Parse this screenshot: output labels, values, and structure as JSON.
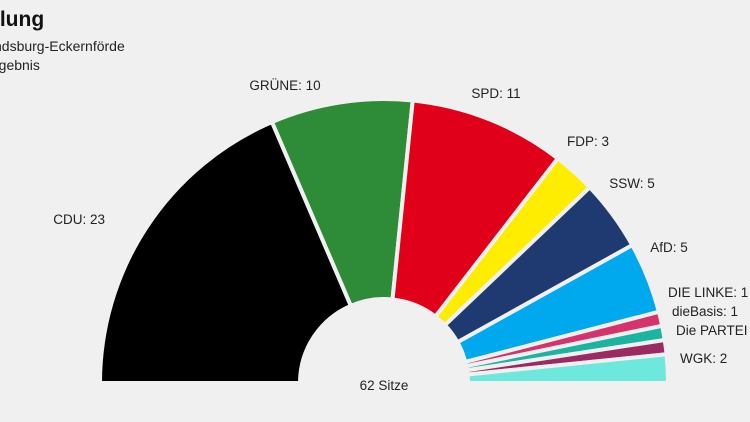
{
  "chart_data": {
    "type": "parliament-semicircle",
    "title": "ilung",
    "subtitle_lines": [
      "ndsburg-Eckernförde",
      "rgebnis"
    ],
    "total_label": "62 Sitze",
    "total_seats": 62,
    "series": [
      {
        "name": "CDU",
        "value": 23,
        "label": "CDU: 23",
        "color": "#000000"
      },
      {
        "name": "GRÜNE",
        "value": 10,
        "label": "GRÜNE: 10",
        "color": "#2e8b37"
      },
      {
        "name": "SPD",
        "value": 11,
        "label": "SPD: 11",
        "color": "#e0001a"
      },
      {
        "name": "FDP",
        "value": 3,
        "label": "FDP: 3",
        "color": "#ffed00"
      },
      {
        "name": "SSW",
        "value": 5,
        "label": "SSW: 5",
        "color": "#1f3a70"
      },
      {
        "name": "AfD",
        "value": 5,
        "label": "AfD: 5",
        "color": "#00a8ee"
      },
      {
        "name": "DIE LINKE",
        "value": 1,
        "label": "DIE LINKE: 1",
        "color": "#d6336c"
      },
      {
        "name": "dieBasis",
        "value": 1,
        "label": "dieBasis: 1",
        "color": "#1bb4a0"
      },
      {
        "name": "Die PARTEI",
        "value": 1,
        "label": "Die PARTEI",
        "color": "#9b2a63"
      },
      {
        "name": "WGK",
        "value": 2,
        "label": "WGK: 2",
        "color": "#6ee8dc"
      }
    ]
  }
}
